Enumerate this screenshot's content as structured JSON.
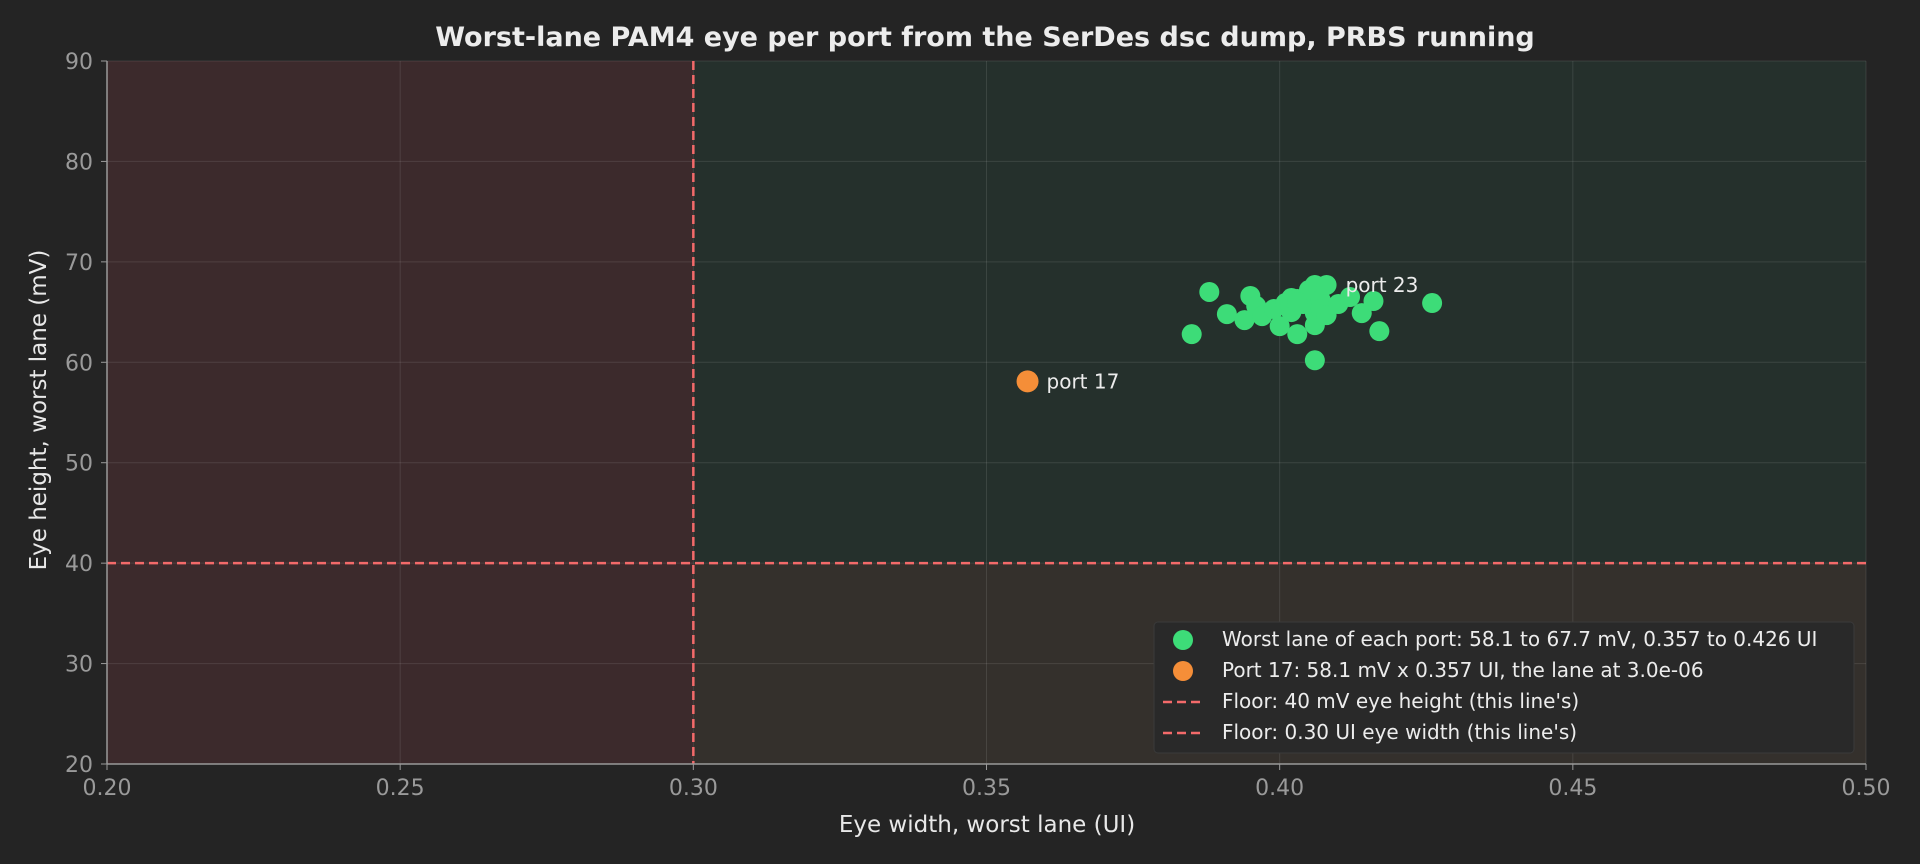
{
  "chart_data": {
    "type": "scatter",
    "title": "Worst-lane PAM4 eye per port from the SerDes dsc dump, PRBS running",
    "xlabel": "Eye width, worst lane (UI)",
    "ylabel": "Eye height, worst lane (mV)",
    "xlim": [
      0.2,
      0.5
    ],
    "ylim": [
      20,
      90
    ],
    "x_ticks": [
      "0.20",
      "0.25",
      "0.30",
      "0.35",
      "0.40",
      "0.45",
      "0.50"
    ],
    "y_ticks": [
      "20",
      "30",
      "40",
      "50",
      "60",
      "70",
      "80",
      "90"
    ],
    "grid": true,
    "legend_position": "bottom-right",
    "colors": {
      "background": "#242424",
      "fail_zone": "#3c2a2c",
      "pass_zone": "#25302c",
      "marginal_zone": "#34302c",
      "ports": "#3ddc78",
      "outlier": "#f58e38",
      "floor": "#f36a6a"
    },
    "series": [
      {
        "name": "Worst lane of each port: 58.1 to 67.7 mV, 0.357 to 0.426 UI",
        "x": [
          0.385,
          0.388,
          0.391,
          0.394,
          0.395,
          0.396,
          0.397,
          0.399,
          0.4,
          0.401,
          0.402,
          0.402,
          0.403,
          0.403,
          0.404,
          0.405,
          0.405,
          0.406,
          0.406,
          0.406,
          0.407,
          0.407,
          0.408,
          0.408,
          0.41,
          0.412,
          0.414,
          0.416,
          0.417,
          0.426,
          0.406,
          0.403
        ],
        "y": [
          62.8,
          67.0,
          64.8,
          64.2,
          66.6,
          65.6,
          64.6,
          65.3,
          63.6,
          65.9,
          65.0,
          66.4,
          66.3,
          62.8,
          65.8,
          65.9,
          67.2,
          67.7,
          64.9,
          63.7,
          66.2,
          65.3,
          67.7,
          64.7,
          65.8,
          66.5,
          64.9,
          66.1,
          63.1,
          65.9,
          60.2,
          66.0
        ]
      },
      {
        "name": "Port 17: 58.1 mV x 0.357 UI, the lane at 3.0e-06",
        "x": [
          0.357
        ],
        "y": [
          58.1
        ]
      }
    ],
    "annotations": [
      {
        "text": "port 17",
        "x": 0.357,
        "y": 58.1
      },
      {
        "text": "port 23",
        "x": 0.408,
        "y": 67.7
      }
    ],
    "thresholds": [
      {
        "name": "Floor: 40 mV eye height (this line's)",
        "axis": "y",
        "value": 40
      },
      {
        "name": "Floor: 0.30 UI eye width (this line's)",
        "axis": "x",
        "value": 0.3
      }
    ]
  }
}
